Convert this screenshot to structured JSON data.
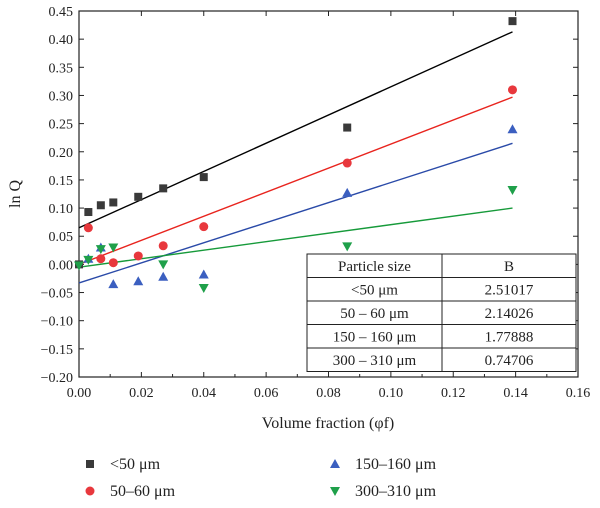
{
  "chart_data": {
    "type": "scatter",
    "xlabel": "Volume fraction (φf)",
    "ylabel": "ln Q",
    "xlim": [
      0.0,
      0.16
    ],
    "ylim": [
      -0.2,
      0.45
    ],
    "xticks": [
      "0.00",
      "0.02",
      "0.04",
      "0.06",
      "0.08",
      "0.10",
      "0.12",
      "0.14",
      "0.16"
    ],
    "yticks": [
      "−0.20",
      "−0.15",
      "−0.10",
      "−0.05",
      "0.00",
      "0.05",
      "0.10",
      "0.15",
      "0.20",
      "0.25",
      "0.30",
      "0.35",
      "0.40",
      "0.45"
    ],
    "grid": false,
    "legend_position": "bottom",
    "series": [
      {
        "name": "<50 μm",
        "marker": "square",
        "color": "#3a3a3a",
        "line_color": "#000000",
        "x": [
          0.0,
          0.003,
          0.007,
          0.011,
          0.019,
          0.027,
          0.04,
          0.086,
          0.139
        ],
        "y": [
          0.0,
          0.093,
          0.105,
          0.11,
          0.12,
          0.135,
          0.155,
          0.243,
          0.432
        ],
        "fit": {
          "x": [
            0.0,
            0.139
          ],
          "y": [
            0.065,
            0.413
          ]
        }
      },
      {
        "name": "50–60 μm",
        "marker": "circle",
        "color": "#e8383d",
        "line_color": "#e8241e",
        "x": [
          0.003,
          0.007,
          0.011,
          0.019,
          0.027,
          0.04,
          0.086,
          0.139
        ],
        "y": [
          0.065,
          0.01,
          0.003,
          0.015,
          0.033,
          0.067,
          0.18,
          0.31
        ],
        "fit": {
          "x": [
            0.0,
            0.139
          ],
          "y": [
            0.0,
            0.297
          ]
        }
      },
      {
        "name": "150–160 μm",
        "marker": "triangle-up",
        "color": "#3b5fc0",
        "line_color": "#2a4aa8",
        "x": [
          0.003,
          0.007,
          0.011,
          0.019,
          0.027,
          0.04,
          0.086,
          0.139
        ],
        "y": [
          0.01,
          0.03,
          -0.035,
          -0.03,
          -0.022,
          -0.018,
          0.127,
          0.24
        ],
        "fit": {
          "x": [
            0.0,
            0.139
          ],
          "y": [
            -0.033,
            0.215
          ]
        }
      },
      {
        "name": "300–310 μm",
        "marker": "triangle-down",
        "color": "#1fa04a",
        "line_color": "#169a3a",
        "x": [
          0.0,
          0.003,
          0.007,
          0.011,
          0.027,
          0.04,
          0.086,
          0.139
        ],
        "y": [
          -0.002,
          0.008,
          0.027,
          0.03,
          0.0,
          -0.042,
          0.032,
          0.132
        ],
        "fit": {
          "x": [
            0.0,
            0.139
          ],
          "y": [
            -0.005,
            0.1
          ]
        }
      }
    ],
    "table": {
      "headers": [
        "Particle size",
        "B"
      ],
      "rows": [
        [
          "<50 μm",
          "2.51017"
        ],
        [
          "50 – 60 μm",
          "2.14026"
        ],
        [
          "150 – 160 μm",
          "1.77888"
        ],
        [
          "300 – 310 μm",
          "0.74706"
        ]
      ]
    }
  }
}
